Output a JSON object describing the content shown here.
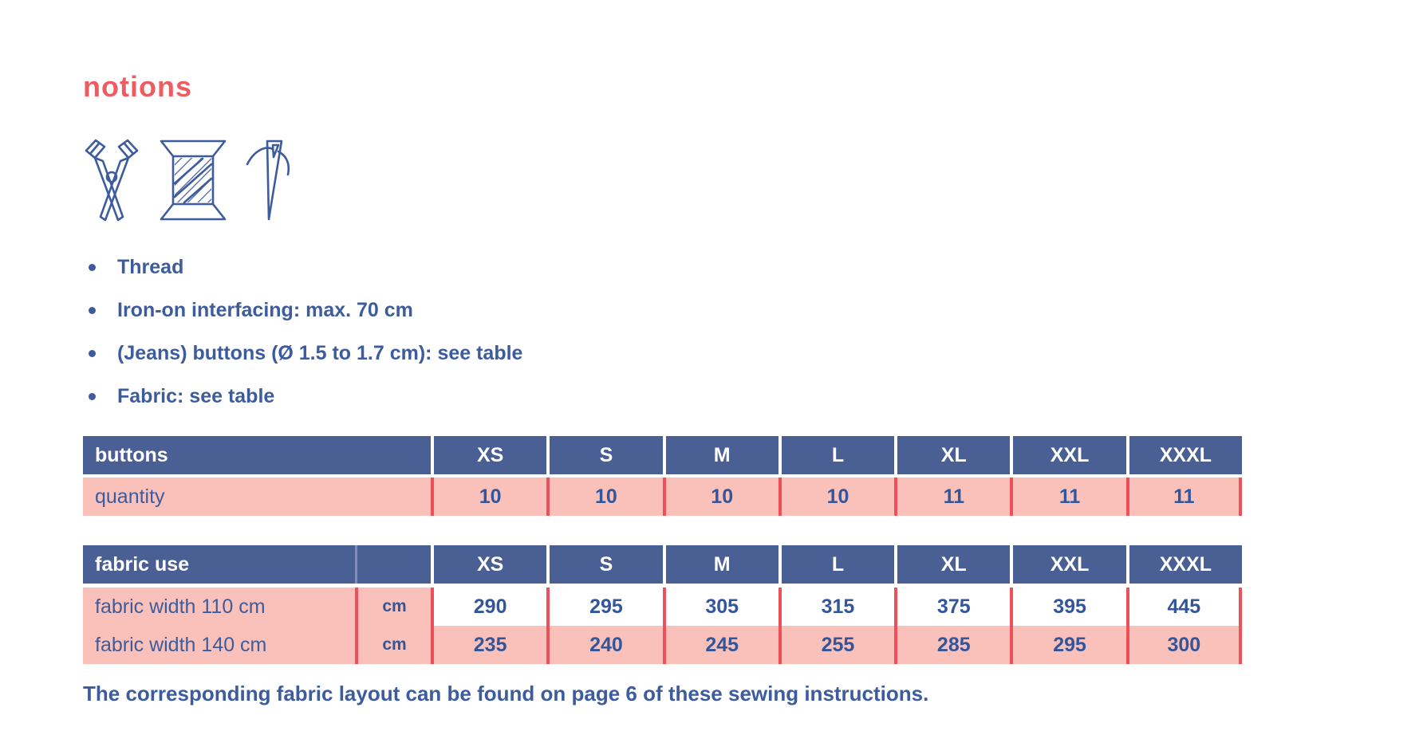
{
  "page": {
    "title": "notions",
    "bullets": [
      "Thread",
      "Iron-on interfacing: max. 70 cm",
      "(Jeans) buttons (Ø 1.5 to 1.7 cm): see table",
      "Fabric: see table"
    ],
    "icons": [
      "scissors-icon",
      "thread-spool-icon",
      "needle-icon"
    ],
    "footer_note": "The corresponding fabric layout can be found on page 6 of these sewing instructions."
  },
  "colors": {
    "title_coral": "#ee5c63",
    "header_blue": "#4a5f93",
    "text_blue": "#3d5c9d",
    "number_blue": "#33569a",
    "row_pink": "#f9c1b9",
    "divider_red": "#ee4f5a"
  },
  "tables": {
    "buttons": {
      "header_label": "buttons",
      "sizes": [
        "XS",
        "S",
        "M",
        "L",
        "XL",
        "XXL",
        "XXXL"
      ],
      "rows": [
        {
          "label": "quantity",
          "values": [
            "10",
            "10",
            "10",
            "10",
            "11",
            "11",
            "11"
          ],
          "values_bg": "pink"
        }
      ]
    },
    "fabric_use": {
      "header_label": "fabric use",
      "sizes": [
        "XS",
        "S",
        "M",
        "L",
        "XL",
        "XXL",
        "XXXL"
      ],
      "rows": [
        {
          "label": "fabric width 110 cm",
          "unit": "cm",
          "values": [
            "290",
            "295",
            "305",
            "315",
            "375",
            "395",
            "445"
          ],
          "values_bg": "white"
        },
        {
          "label": "fabric width 140 cm",
          "unit": "cm",
          "values": [
            "235",
            "240",
            "245",
            "255",
            "285",
            "295",
            "300"
          ],
          "values_bg": "pink"
        }
      ]
    }
  }
}
